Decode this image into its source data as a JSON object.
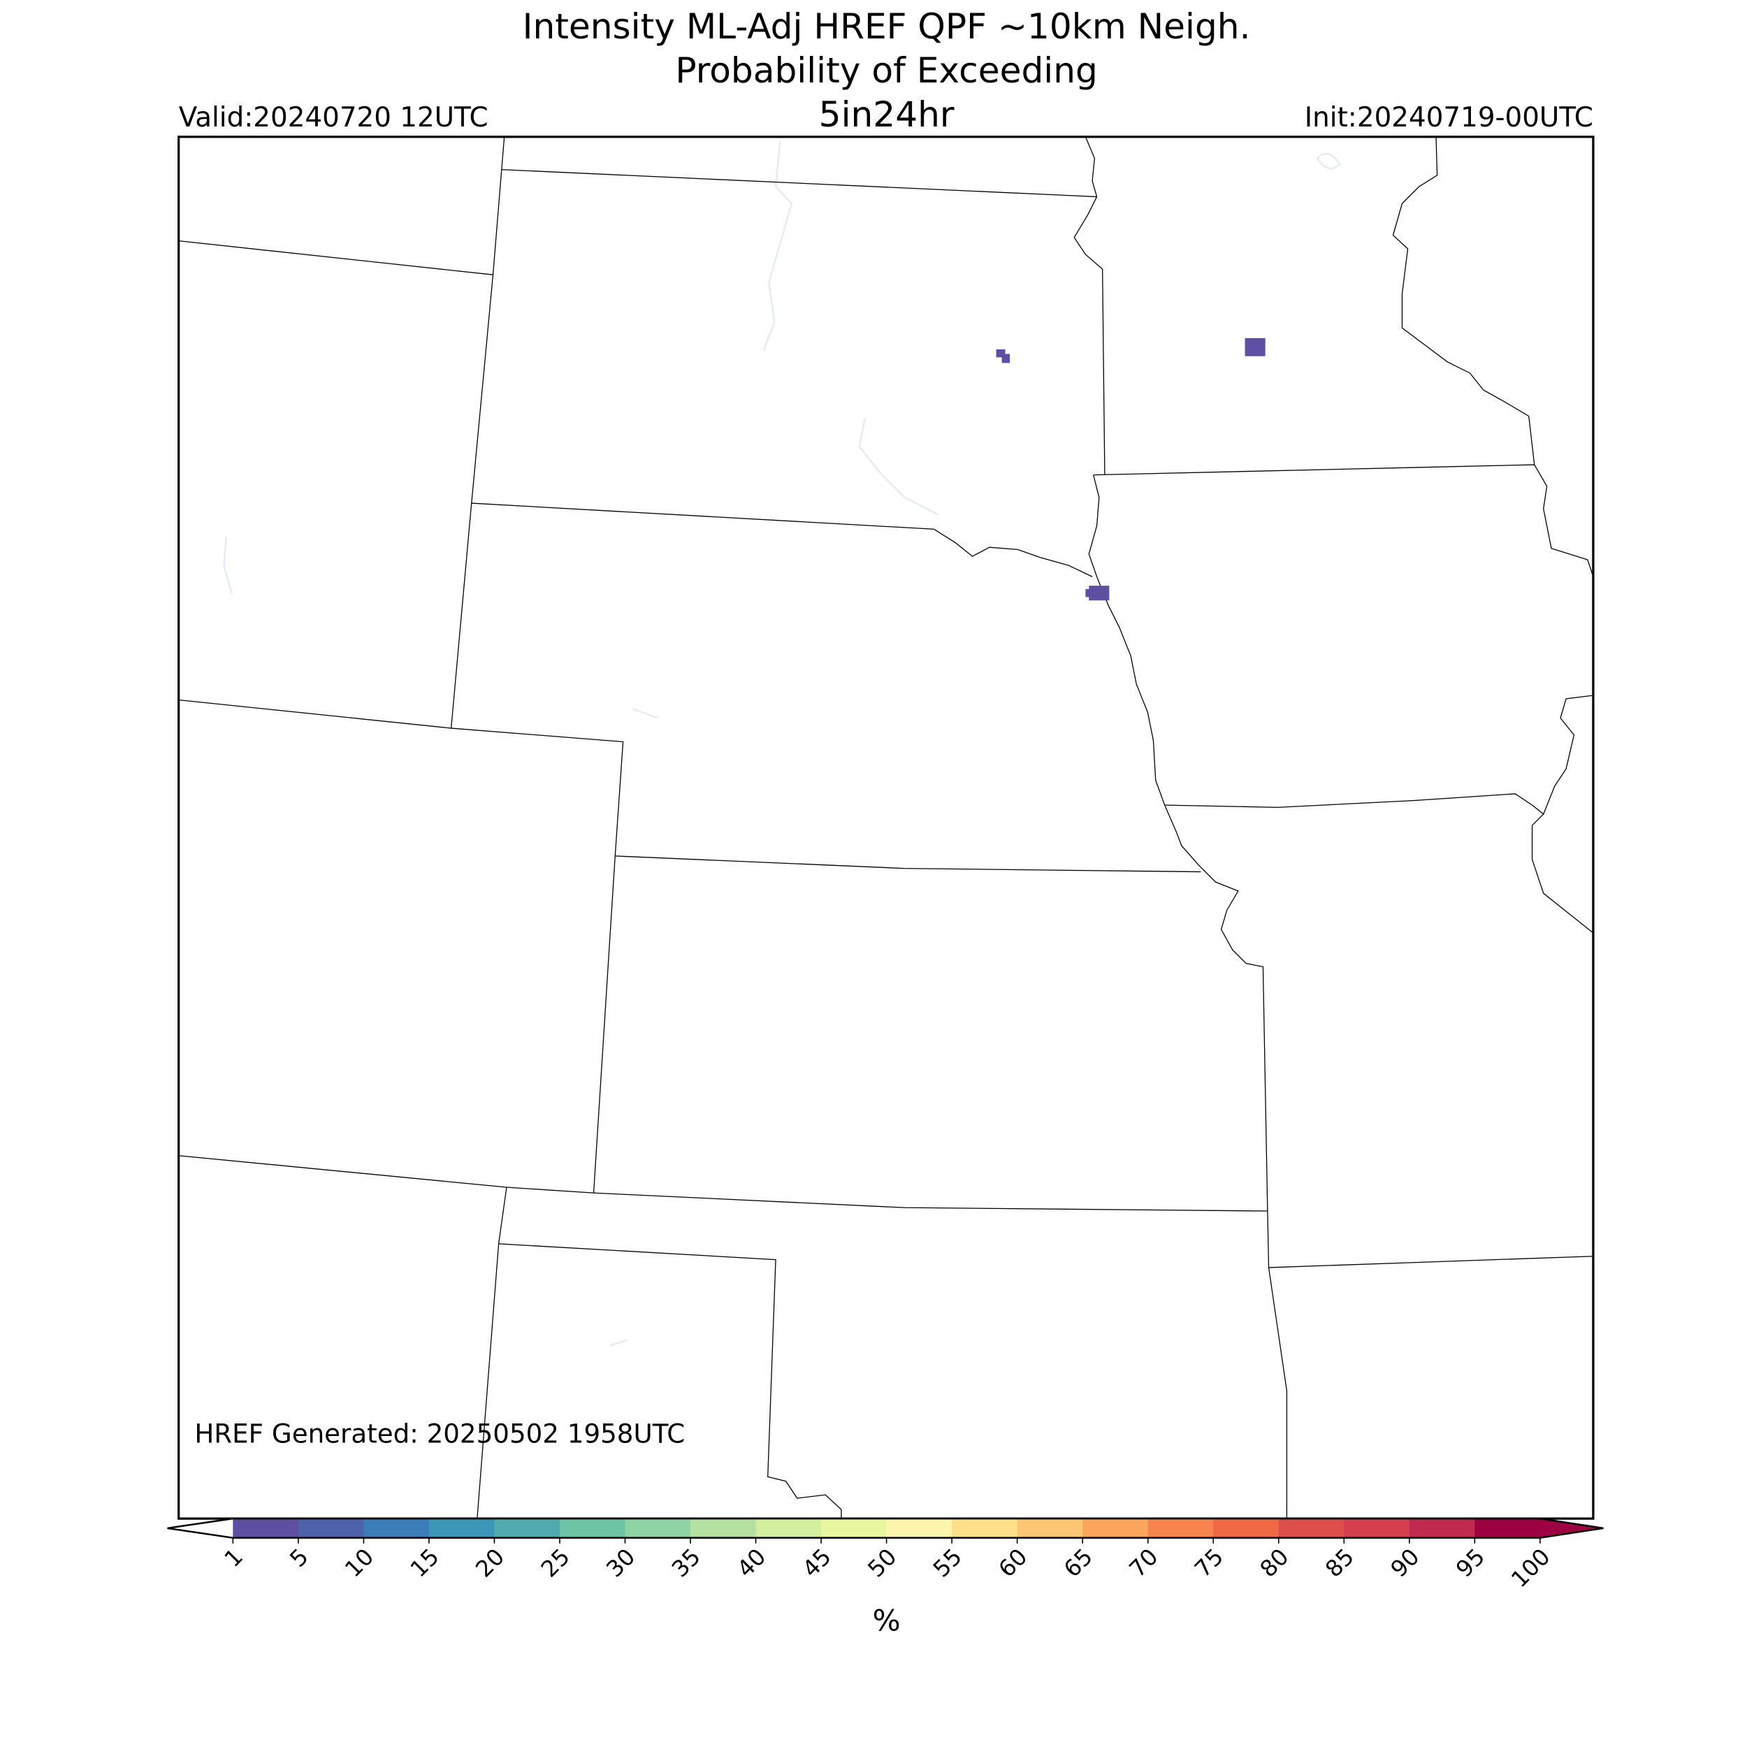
{
  "header": {
    "title_lines": [
      "Intensity ML-Adj HREF QPF ~10km Neigh.",
      "Probability of Exceeding",
      "5in24hr"
    ],
    "valid": "Valid:20240720 12UTC",
    "init": "Init:20240719-00UTC"
  },
  "footer_note": "HREF Generated: 20250502 1958UTC",
  "colorbar": {
    "label": "%",
    "ticks": [
      1,
      5,
      10,
      15,
      20,
      25,
      30,
      35,
      40,
      45,
      50,
      55,
      60,
      65,
      70,
      75,
      80,
      85,
      90,
      95,
      100
    ],
    "colors": [
      "#5e4fa2",
      "#4d62ab",
      "#3a7db8",
      "#3d95b8",
      "#51abae",
      "#6cc4a5",
      "#8fd2a4",
      "#b4e1a2",
      "#d3ee9c",
      "#e9f6a0",
      "#fef5ad",
      "#fee08b",
      "#fdc675",
      "#fca55d",
      "#f7844e",
      "#f16845",
      "#de4e4b",
      "#d43e4f",
      "#c02a4e",
      "#9e0142"
    ],
    "under_color": "#ffffff",
    "over_color": "#9e0142"
  }
}
